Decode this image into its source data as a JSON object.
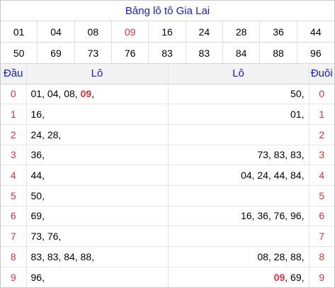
{
  "title": "Bảng lô tô Gia Lai",
  "numbers_row1": [
    "01",
    "04",
    "08",
    "09",
    "16",
    "24",
    "28",
    "36",
    "44"
  ],
  "numbers_row2": [
    "50",
    "69",
    "73",
    "76",
    "83",
    "83",
    "84",
    "88",
    "96"
  ],
  "headers": {
    "dau": "Đầu",
    "lo_left": "Lô",
    "lo_right": "Lô",
    "duoi": "Đuôi"
  },
  "rows": [
    {
      "dau": "0",
      "left_pre": "01, 04, 08, ",
      "left_hl": "09",
      "left_post": ",",
      "right_pre": "50,",
      "right_hl": "",
      "right_post": "",
      "duoi": "0"
    },
    {
      "dau": "1",
      "left_pre": "16,",
      "left_hl": "",
      "left_post": "",
      "right_pre": "01,",
      "right_hl": "",
      "right_post": "",
      "duoi": "1"
    },
    {
      "dau": "2",
      "left_pre": "24, 28,",
      "left_hl": "",
      "left_post": "",
      "right_pre": "",
      "right_hl": "",
      "right_post": "",
      "duoi": "2"
    },
    {
      "dau": "3",
      "left_pre": "36,",
      "left_hl": "",
      "left_post": "",
      "right_pre": "73, 83, 83,",
      "right_hl": "",
      "right_post": "",
      "duoi": "3"
    },
    {
      "dau": "4",
      "left_pre": "44,",
      "left_hl": "",
      "left_post": "",
      "right_pre": "04, 24, 44, 84,",
      "right_hl": "",
      "right_post": "",
      "duoi": "4"
    },
    {
      "dau": "5",
      "left_pre": "50,",
      "left_hl": "",
      "left_post": "",
      "right_pre": "",
      "right_hl": "",
      "right_post": "",
      "duoi": "5"
    },
    {
      "dau": "6",
      "left_pre": "69,",
      "left_hl": "",
      "left_post": "",
      "right_pre": "16, 36, 76, 96,",
      "right_hl": "",
      "right_post": "",
      "duoi": "6"
    },
    {
      "dau": "7",
      "left_pre": "73, 76,",
      "left_hl": "",
      "left_post": "",
      "right_pre": "",
      "right_hl": "",
      "right_post": "",
      "duoi": "7"
    },
    {
      "dau": "8",
      "left_pre": "83, 83, 84, 88,",
      "left_hl": "",
      "left_post": "",
      "right_pre": "08, 28, 88,",
      "right_hl": "",
      "right_post": "",
      "duoi": "8"
    },
    {
      "dau": "9",
      "left_pre": "96,",
      "left_hl": "",
      "left_post": "",
      "right_pre": "",
      "right_hl": "09",
      "right_post": ", 69,",
      "duoi": "9"
    }
  ],
  "colors": {
    "accent_blue": "#1a1ad6",
    "accent_red": "#e0303a"
  }
}
